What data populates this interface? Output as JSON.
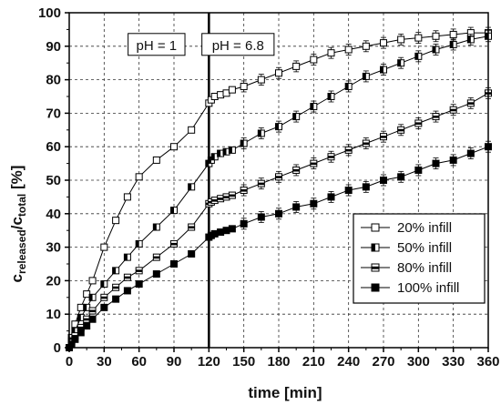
{
  "chart_data": {
    "type": "scatter",
    "xlabel": "time [min]",
    "ylabel": {
      "main": "c",
      "sub1": "released",
      "mid": "/c",
      "sub2": "total",
      "unit": " [%]"
    },
    "xlim": [
      0,
      360
    ],
    "ylim": [
      0,
      100
    ],
    "x_ticks": [
      "0",
      "30",
      "60",
      "90",
      "120",
      "150",
      "180",
      "210",
      "240",
      "270",
      "300",
      "330",
      "360"
    ],
    "y_ticks": [
      "0",
      "10",
      "20",
      "30",
      "40",
      "50",
      "60",
      "70",
      "80",
      "90",
      "100"
    ],
    "grid": true,
    "legend_position": "lower-right",
    "annotations": [
      {
        "text": "pH = 1",
        "x": 75,
        "y": 90
      },
      {
        "text": "pH = 6.8",
        "x": 145,
        "y": 90
      }
    ],
    "divider_x": 120,
    "series": [
      {
        "name": "20% infill",
        "marker": "open-square",
        "points": [
          [
            0,
            0
          ],
          [
            2,
            3
          ],
          [
            5,
            7
          ],
          [
            10,
            12
          ],
          [
            15,
            16
          ],
          [
            20,
            20
          ],
          [
            30,
            30
          ],
          [
            40,
            38
          ],
          [
            50,
            45
          ],
          [
            60,
            51
          ],
          [
            75,
            56
          ],
          [
            90,
            60
          ],
          [
            105,
            65
          ],
          [
            120,
            73
          ],
          [
            122,
            74
          ],
          [
            125,
            75
          ],
          [
            130,
            75.5
          ],
          [
            135,
            76
          ],
          [
            140,
            77
          ],
          [
            150,
            78
          ],
          [
            165,
            80
          ],
          [
            180,
            82
          ],
          [
            195,
            84
          ],
          [
            210,
            86
          ],
          [
            225,
            88
          ],
          [
            240,
            89
          ],
          [
            255,
            90
          ],
          [
            270,
            91
          ],
          [
            285,
            92
          ],
          [
            300,
            92.5
          ],
          [
            315,
            93
          ],
          [
            330,
            93.5
          ],
          [
            345,
            94
          ],
          [
            360,
            94
          ]
        ]
      },
      {
        "name": "50% infill",
        "marker": "half-filled-square",
        "points": [
          [
            0,
            0
          ],
          [
            2,
            2
          ],
          [
            5,
            5
          ],
          [
            10,
            9
          ],
          [
            15,
            12
          ],
          [
            20,
            15
          ],
          [
            30,
            19
          ],
          [
            40,
            23
          ],
          [
            50,
            27
          ],
          [
            60,
            31
          ],
          [
            75,
            36
          ],
          [
            90,
            41
          ],
          [
            105,
            48
          ],
          [
            120,
            55
          ],
          [
            122,
            56
          ],
          [
            125,
            57
          ],
          [
            130,
            58
          ],
          [
            135,
            58.5
          ],
          [
            140,
            59
          ],
          [
            150,
            61
          ],
          [
            165,
            64
          ],
          [
            180,
            66
          ],
          [
            195,
            69
          ],
          [
            210,
            72
          ],
          [
            225,
            75
          ],
          [
            240,
            78
          ],
          [
            255,
            81
          ],
          [
            270,
            83
          ],
          [
            285,
            85
          ],
          [
            300,
            87
          ],
          [
            315,
            89
          ],
          [
            330,
            90.5
          ],
          [
            345,
            92
          ],
          [
            360,
            93
          ]
        ]
      },
      {
        "name": "80% infill",
        "marker": "mid-filled-square",
        "points": [
          [
            0,
            0
          ],
          [
            2,
            1.5
          ],
          [
            5,
            3.5
          ],
          [
            10,
            6
          ],
          [
            15,
            8.5
          ],
          [
            20,
            11
          ],
          [
            30,
            15
          ],
          [
            40,
            18
          ],
          [
            50,
            21
          ],
          [
            60,
            23
          ],
          [
            75,
            27
          ],
          [
            90,
            31
          ],
          [
            105,
            36
          ],
          [
            120,
            43
          ],
          [
            122,
            43.5
          ],
          [
            125,
            44
          ],
          [
            130,
            44.5
          ],
          [
            135,
            45
          ],
          [
            140,
            45.5
          ],
          [
            150,
            47
          ],
          [
            165,
            49
          ],
          [
            180,
            51
          ],
          [
            195,
            53
          ],
          [
            210,
            55
          ],
          [
            225,
            57
          ],
          [
            240,
            59
          ],
          [
            255,
            61
          ],
          [
            270,
            63
          ],
          [
            285,
            65
          ],
          [
            300,
            67
          ],
          [
            315,
            69
          ],
          [
            330,
            71
          ],
          [
            345,
            73
          ],
          [
            360,
            76
          ]
        ]
      },
      {
        "name": "100% infill",
        "marker": "filled-square",
        "points": [
          [
            0,
            0
          ],
          [
            2,
            1
          ],
          [
            5,
            2.5
          ],
          [
            10,
            4.5
          ],
          [
            15,
            6.5
          ],
          [
            20,
            8.5
          ],
          [
            30,
            12
          ],
          [
            40,
            14.5
          ],
          [
            50,
            17
          ],
          [
            60,
            19
          ],
          [
            75,
            22
          ],
          [
            90,
            25
          ],
          [
            105,
            28
          ],
          [
            120,
            33
          ],
          [
            122,
            33.5
          ],
          [
            125,
            34
          ],
          [
            130,
            34.5
          ],
          [
            135,
            35
          ],
          [
            140,
            35.5
          ],
          [
            150,
            37
          ],
          [
            165,
            39
          ],
          [
            180,
            40
          ],
          [
            195,
            42
          ],
          [
            210,
            43
          ],
          [
            225,
            45
          ],
          [
            240,
            47
          ],
          [
            255,
            48
          ],
          [
            270,
            50
          ],
          [
            285,
            51
          ],
          [
            300,
            53
          ],
          [
            315,
            55
          ],
          [
            330,
            56
          ],
          [
            345,
            58
          ],
          [
            360,
            60
          ]
        ]
      }
    ]
  }
}
